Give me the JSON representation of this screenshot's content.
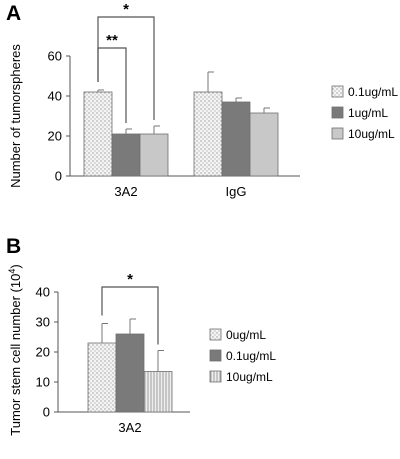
{
  "chart_data": [
    {
      "panel": "A",
      "type": "bar",
      "ylabel": "Number of tumorspheres",
      "ylim": [
        0,
        60
      ],
      "yticks": [
        0,
        20,
        40,
        60
      ],
      "categories": [
        "3A2",
        "IgG"
      ],
      "series": [
        {
          "name": "0.1ug/mL",
          "values": [
            42,
            42
          ],
          "errors": [
            1,
            10
          ],
          "color": "#f4f4f4",
          "pattern": "dots"
        },
        {
          "name": "1ug/mL",
          "values": [
            21,
            37
          ],
          "errors": [
            2.5,
            2
          ],
          "color": "#7a7a7a",
          "pattern": "solid"
        },
        {
          "name": "10ug/mL",
          "values": [
            21,
            31.5
          ],
          "errors": [
            4,
            2.5
          ],
          "color": "#c8c8c8",
          "pattern": "solid"
        }
      ],
      "significance": [
        {
          "label": "**",
          "from_series": 0,
          "to_series": 1,
          "category": 0
        },
        {
          "label": "*",
          "from_series": 0,
          "to_series": 2,
          "category": 0
        }
      ],
      "legend_position": "right"
    },
    {
      "panel": "B",
      "type": "bar",
      "ylabel": "Tumor stem cell number (10",
      "ylabel_sup": "4",
      "ylabel_end": ")",
      "ylim": [
        0,
        40
      ],
      "yticks": [
        0,
        10,
        20,
        30,
        40
      ],
      "categories": [
        "3A2"
      ],
      "series": [
        {
          "name": "0ug/mL",
          "values": [
            23
          ],
          "errors": [
            6.5
          ],
          "color": "#f4f4f4",
          "pattern": "dots"
        },
        {
          "name": "0.1ug/mL",
          "values": [
            26
          ],
          "errors": [
            5
          ],
          "color": "#7a7a7a",
          "pattern": "solid"
        },
        {
          "name": "10ug/mL",
          "values": [
            13.5
          ],
          "errors": [
            7
          ],
          "color": "#e6e6e6",
          "pattern": "vlines"
        }
      ],
      "significance": [
        {
          "label": "*",
          "from_series": 0,
          "to_series": 2,
          "category": 0
        }
      ],
      "legend_position": "right"
    }
  ]
}
